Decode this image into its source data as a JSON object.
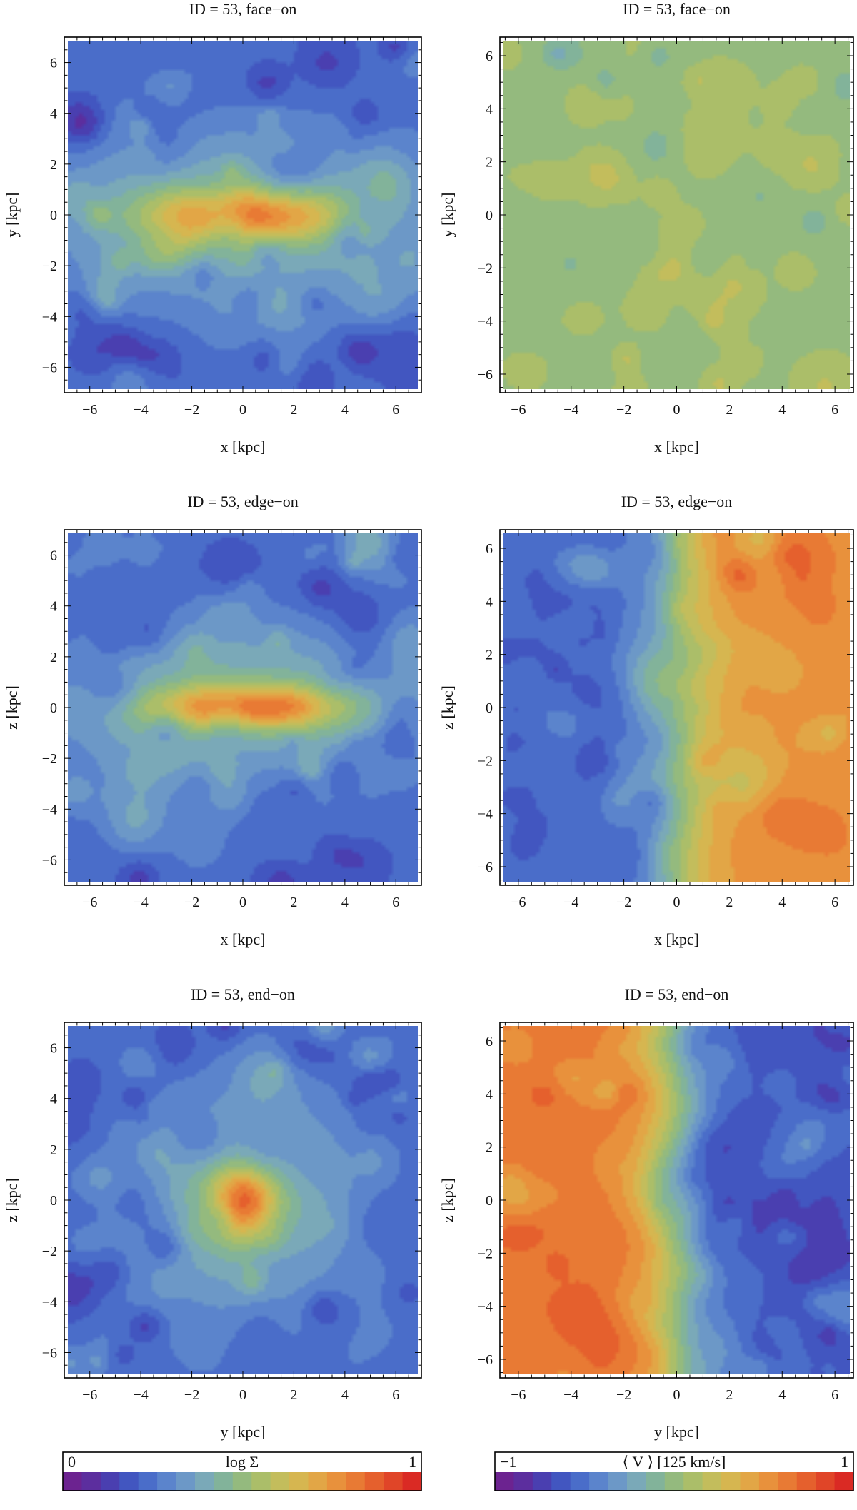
{
  "chart_data": [
    {
      "type": "heatmap",
      "title": "ID = 53, face−on",
      "xlabel": "x [kpc]",
      "ylabel": "y [kpc]",
      "xlim": [
        -7,
        7
      ],
      "ylim": [
        -7,
        7
      ],
      "xticks": [
        -6,
        -4,
        -2,
        0,
        2,
        4,
        6
      ],
      "yticks": [
        -6,
        -4,
        -2,
        0,
        2,
        4,
        6
      ],
      "tick_labels": [
        "−6",
        "−4",
        "−2",
        "0",
        "2",
        "4",
        "6"
      ],
      "quantity": "log Σ",
      "colormap": "sigma",
      "peak": 1.0,
      "center": [
        0,
        0
      ],
      "spread": [
        2.6,
        0.75
      ],
      "halo": [
        5.5,
        2.4
      ]
    },
    {
      "type": "heatmap",
      "title": "ID = 53, face−on",
      "xlabel": "x [kpc]",
      "ylabel": "y [kpc]",
      "xlim": [
        -6.7,
        6.7
      ],
      "ylim": [
        -6.7,
        6.7
      ],
      "xticks": [
        -6,
        -4,
        -2,
        0,
        2,
        4,
        6
      ],
      "yticks": [
        -6,
        -4,
        -2,
        0,
        2,
        4,
        6
      ],
      "tick_labels": [
        "−6",
        "−4",
        "−2",
        "0",
        "2",
        "4",
        "6"
      ],
      "quantity": "⟨ V ⟩",
      "colormap": "velocity",
      "rotation_amplitude": 0.0,
      "axis": "x"
    },
    {
      "type": "heatmap",
      "title": "ID = 53, edge−on",
      "xlabel": "x [kpc]",
      "ylabel": "z [kpc]",
      "xlim": [
        -7,
        7
      ],
      "ylim": [
        -7,
        7
      ],
      "xticks": [
        -6,
        -4,
        -2,
        0,
        2,
        4,
        6
      ],
      "yticks": [
        -6,
        -4,
        -2,
        0,
        2,
        4,
        6
      ],
      "tick_labels": [
        "−6",
        "−4",
        "−2",
        "0",
        "2",
        "4",
        "6"
      ],
      "quantity": "log Σ",
      "colormap": "sigma",
      "peak": 0.95,
      "center": [
        0,
        0
      ],
      "spread": [
        2.6,
        0.6
      ],
      "halo": [
        5.5,
        2.2
      ]
    },
    {
      "type": "heatmap",
      "title": "ID = 53, edge−on",
      "xlabel": "x [kpc]",
      "ylabel": "z [kpc]",
      "xlim": [
        -6.7,
        6.7
      ],
      "ylim": [
        -6.7,
        6.7
      ],
      "xticks": [
        -6,
        -4,
        -2,
        0,
        2,
        4,
        6
      ],
      "yticks": [
        -6,
        -4,
        -2,
        0,
        2,
        4,
        6
      ],
      "tick_labels": [
        "−6",
        "−4",
        "−2",
        "0",
        "2",
        "4",
        "6"
      ],
      "quantity": "⟨ V ⟩",
      "colormap": "velocity",
      "rotation_amplitude": 0.55,
      "axis": "x"
    },
    {
      "type": "heatmap",
      "title": "ID = 53, end−on",
      "xlabel": "y [kpc]",
      "ylabel": "z [kpc]",
      "xlim": [
        -7,
        7
      ],
      "ylim": [
        -7,
        7
      ],
      "xticks": [
        -6,
        -4,
        -2,
        0,
        2,
        4,
        6
      ],
      "yticks": [
        -6,
        -4,
        -2,
        0,
        2,
        4,
        6
      ],
      "tick_labels": [
        "−6",
        "−4",
        "−2",
        "0",
        "2",
        "4",
        "6"
      ],
      "quantity": "log Σ",
      "colormap": "sigma",
      "peak": 1.0,
      "center": [
        0,
        0
      ],
      "spread": [
        0.9,
        0.9
      ],
      "halo": [
        3.2,
        3.2
      ]
    },
    {
      "type": "heatmap",
      "title": "ID = 53, end−on",
      "xlabel": "y [kpc]",
      "ylabel": "z [kpc]",
      "xlim": [
        -6.7,
        6.7
      ],
      "ylim": [
        -6.7,
        6.7
      ],
      "xticks": [
        -6,
        -4,
        -2,
        0,
        2,
        4,
        6
      ],
      "yticks": [
        -6,
        -4,
        -2,
        0,
        2,
        4,
        6
      ],
      "tick_labels": [
        "−6",
        "−4",
        "−2",
        "0",
        "2",
        "4",
        "6"
      ],
      "quantity": "⟨ V ⟩",
      "colormap": "velocity",
      "rotation_amplitude": -0.65,
      "axis": "x"
    }
  ],
  "colorbars": [
    {
      "label": "log Σ",
      "min_label": "0",
      "max_label": "1",
      "colormap": "sigma"
    },
    {
      "label": "⟨ V ⟩ [125 km/s]",
      "min_label": "−1",
      "max_label": "1",
      "colormap": "velocity"
    }
  ],
  "palette": [
    "#6c2390",
    "#5c2e9e",
    "#4a3fb0",
    "#4256c0",
    "#4a6dc9",
    "#5b84cc",
    "#6c98c7",
    "#7aa9b8",
    "#82b39a",
    "#94ba7e",
    "#abbe69",
    "#c3bd5c",
    "#d6b650",
    "#e2a646",
    "#e8913c",
    "#e87a34",
    "#e5602d",
    "#e04528",
    "#da2a24"
  ]
}
